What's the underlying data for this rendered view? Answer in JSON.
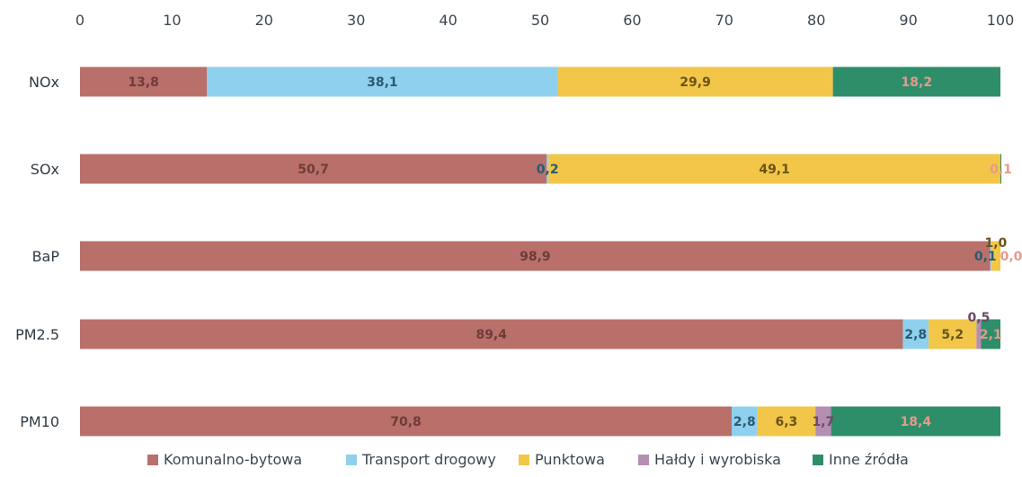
{
  "chart_data": {
    "type": "bar",
    "orientation": "horizontal",
    "stacked": true,
    "xlim": [
      0,
      100
    ],
    "x_ticks": [
      "0",
      "10",
      "20",
      "30",
      "40",
      "50",
      "60",
      "70",
      "80",
      "90",
      "100"
    ],
    "x_axis_position": "top",
    "grid": false,
    "legend_position": "bottom",
    "categories": [
      "NOx",
      "SOx",
      "BaP",
      "PM2.5",
      "PM10"
    ],
    "series": [
      {
        "name": "Komunalno-bytowa",
        "color": "#b9706a",
        "text_color": "#6e3c38",
        "values": [
          13.8,
          50.7,
          98.9,
          89.4,
          70.8
        ],
        "labels": [
          "13,8",
          "50,7",
          "98,9",
          "89,4",
          "70,8"
        ]
      },
      {
        "name": "Transport drogowy",
        "color": "#8fd0ee",
        "text_color": "#2a5a72",
        "values": [
          38.1,
          0.2,
          0.1,
          2.8,
          2.8
        ],
        "labels": [
          "38,1",
          "0,2",
          "0,1",
          "2,8",
          "2,8"
        ]
      },
      {
        "name": "Punktowa",
        "color": "#f2c648",
        "text_color": "#6a5418",
        "values": [
          29.9,
          49.1,
          1.0,
          5.2,
          6.3
        ],
        "labels": [
          "29,9",
          "49,1",
          "1,0",
          "5,2",
          "6,3"
        ]
      },
      {
        "name": "Hałdy i wyrobiska",
        "color": "#b58eb3",
        "text_color": "#6a4a68",
        "values": [
          0.0,
          0.0,
          0.0,
          0.5,
          1.7
        ],
        "labels": [
          "",
          "",
          "",
          "0,5",
          "1,7"
        ]
      },
      {
        "name": "Inne źródła",
        "color": "#2e8e6a",
        "text_color": "#e69a8c",
        "values": [
          18.2,
          0.1,
          0.0,
          2.1,
          18.4
        ],
        "labels": [
          "18,2",
          "0,1",
          "0,0",
          "2,1",
          "18,4"
        ]
      }
    ]
  }
}
